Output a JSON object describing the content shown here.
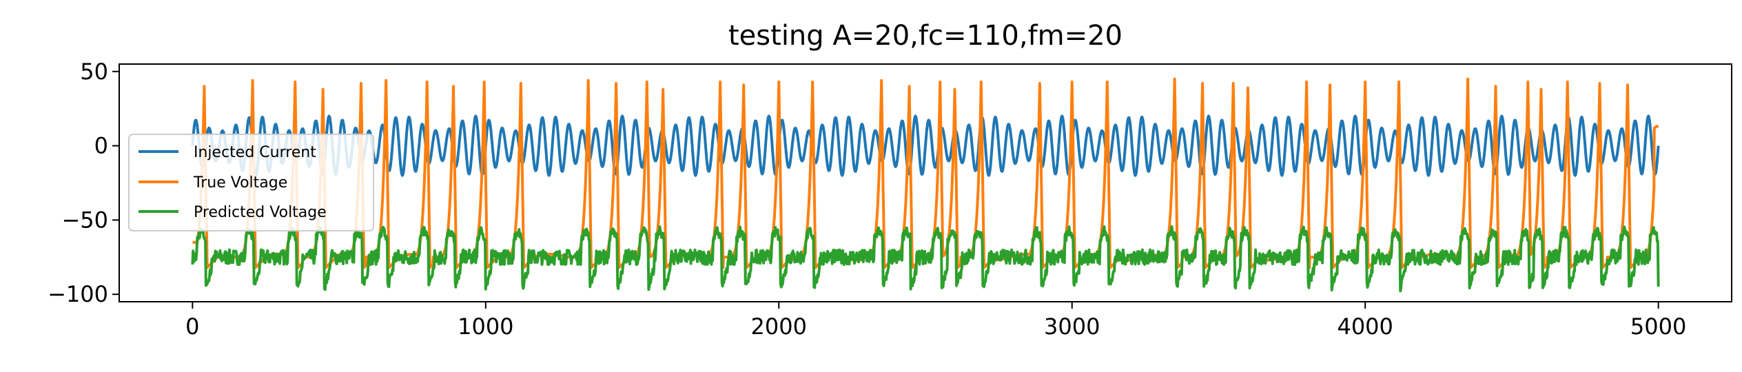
{
  "chart_data": {
    "type": "line",
    "title": "testing A=20,fc=110,fm=20",
    "xlabel": "",
    "ylabel": "",
    "xlim": [
      -250,
      5250
    ],
    "ylim": [
      -105,
      55
    ],
    "x_ticks": [
      0,
      1000,
      2000,
      3000,
      4000,
      5000
    ],
    "x_tick_labels": [
      "0",
      "1000",
      "2000",
      "3000",
      "4000",
      "5000"
    ],
    "y_ticks": [
      50,
      0,
      -50,
      -100
    ],
    "y_tick_labels": [
      "50",
      "0",
      "−50",
      "−100"
    ],
    "grid": false,
    "legend_position": "center-left",
    "x_range": [
      0,
      5000
    ],
    "series": [
      {
        "name": "Injected Current",
        "color": "#1f77b4",
        "model": {
          "kind": "am",
          "amplitude": 20,
          "carrier_peaks": 110,
          "mod_cycles": 20,
          "mod_depth": 0.5
        }
      },
      {
        "name": "True Voltage",
        "color": "#ff7f0e",
        "model": {
          "kind": "spikes",
          "rest": -75,
          "start": -65,
          "end": 12,
          "spike_x": [
            40,
            205,
            350,
            445,
            575,
            660,
            800,
            890,
            995,
            1120,
            1350,
            1445,
            1550,
            1605,
            1800,
            1880,
            2000,
            2115,
            2350,
            2445,
            2550,
            2600,
            2690,
            2890,
            3000,
            3120,
            3350,
            3445,
            3550,
            3600,
            3800,
            3880,
            4000,
            4115,
            4350,
            4445,
            4555,
            4600,
            4690,
            4800,
            4895,
            4995
          ],
          "spike_peak": [
            40,
            44,
            43,
            38,
            42,
            44,
            43,
            40,
            43,
            42,
            44,
            42,
            43,
            38,
            43,
            41,
            43,
            43,
            44,
            40,
            43,
            38,
            43,
            42,
            43,
            43,
            45,
            42,
            42,
            39,
            43,
            41,
            43,
            43,
            45,
            40,
            43,
            38,
            43,
            42,
            41,
            43
          ]
        }
      },
      {
        "name": "Predicted Voltage",
        "color": "#2ca02c",
        "model": {
          "kind": "noisy",
          "rest": -75,
          "peak": -57,
          "trough": -95
        }
      }
    ]
  }
}
